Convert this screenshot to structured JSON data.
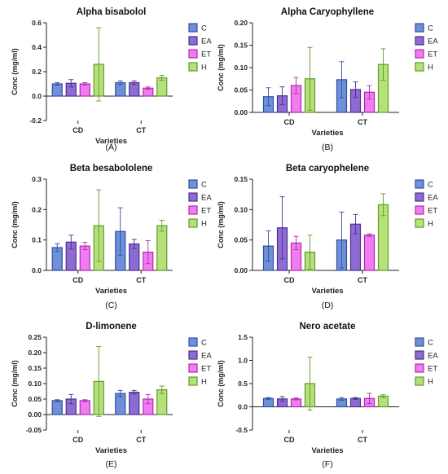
{
  "colors": {
    "C": {
      "fill": "#6f8fd8",
      "stroke": "#2f4fa0"
    },
    "EA": {
      "fill": "#8e6bd3",
      "stroke": "#4a2f8f"
    },
    "ET": {
      "fill": "#f07cf0",
      "stroke": "#b02ab0"
    },
    "H": {
      "fill": "#b6e07a",
      "stroke": "#5f9a2a"
    }
  },
  "chart_data": [
    {
      "type": "bar",
      "title": "Alpha bisabolol",
      "panel_label": "(A)",
      "xlabel": "Varieties",
      "ylabel": "Conc (mg/ml)",
      "categories": [
        "CD",
        "CT"
      ],
      "legend": [
        "C",
        "EA",
        "ET",
        "H"
      ],
      "ylim": [
        -0.2,
        0.6
      ],
      "yticks": [
        -0.2,
        0.0,
        0.2,
        0.4,
        0.6
      ],
      "ytick_labels": [
        "-0.2",
        "0.0",
        "0.2",
        "0.4",
        "0.6"
      ],
      "series": [
        {
          "name": "C",
          "values": [
            0.1,
            0.11
          ],
          "errors": [
            0.01,
            0.015
          ]
        },
        {
          "name": "EA",
          "values": [
            0.105,
            0.11
          ],
          "errors": [
            0.03,
            0.015
          ]
        },
        {
          "name": "ET",
          "values": [
            0.1,
            0.065
          ],
          "errors": [
            0.01,
            0.01
          ]
        },
        {
          "name": "H",
          "values": [
            0.26,
            0.15
          ],
          "errors": [
            0.3,
            0.02
          ]
        }
      ]
    },
    {
      "type": "bar",
      "title": "Alpha Caryophyllene",
      "panel_label": "(B)",
      "xlabel": "Varieties",
      "ylabel": "Conc (mg/ml)",
      "categories": [
        "CD",
        "CT"
      ],
      "legend": [
        "C",
        "EA",
        "ET",
        "H"
      ],
      "ylim": [
        0,
        0.2
      ],
      "yticks": [
        0,
        0.05,
        0.1,
        0.15,
        0.2
      ],
      "ytick_labels": [
        "0.00",
        "0.05",
        "0.10",
        "0.15",
        "0.20"
      ],
      "series": [
        {
          "name": "C",
          "values": [
            0.035,
            0.073
          ],
          "errors": [
            0.02,
            0.04
          ]
        },
        {
          "name": "EA",
          "values": [
            0.037,
            0.051
          ],
          "errors": [
            0.02,
            0.017
          ]
        },
        {
          "name": "ET",
          "values": [
            0.06,
            0.045
          ],
          "errors": [
            0.018,
            0.015
          ]
        },
        {
          "name": "H",
          "values": [
            0.075,
            0.107
          ],
          "errors": [
            0.07,
            0.035
          ]
        }
      ]
    },
    {
      "type": "bar",
      "title": "Beta besabololene",
      "panel_label": "(C)",
      "xlabel": "Varieties",
      "ylabel": "Conc (mg/ml)",
      "categories": [
        "CD",
        "CT"
      ],
      "legend": [
        "C",
        "EA",
        "ET",
        "H"
      ],
      "ylim": [
        0,
        0.3
      ],
      "yticks": [
        0,
        0.1,
        0.2,
        0.3
      ],
      "ytick_labels": [
        "0.0",
        "0.1",
        "0.2",
        "0.3"
      ],
      "series": [
        {
          "name": "C",
          "values": [
            0.075,
            0.128
          ],
          "errors": [
            0.013,
            0.078
          ]
        },
        {
          "name": "EA",
          "values": [
            0.093,
            0.087
          ],
          "errors": [
            0.023,
            0.015
          ]
        },
        {
          "name": "ET",
          "values": [
            0.08,
            0.06
          ],
          "errors": [
            0.012,
            0.038
          ]
        },
        {
          "name": "H",
          "values": [
            0.147,
            0.147
          ],
          "errors": [
            0.118,
            0.018
          ]
        }
      ]
    },
    {
      "type": "bar",
      "title": "Beta caryophelene",
      "panel_label": "(D)",
      "xlabel": "Varieties",
      "ylabel": "Conc (mg/ml)",
      "categories": [
        "CD",
        "CT"
      ],
      "legend": [
        "C",
        "EA",
        "ET",
        "H"
      ],
      "ylim": [
        0,
        0.15
      ],
      "yticks": [
        0,
        0.05,
        0.1,
        0.15
      ],
      "ytick_labels": [
        "0.00",
        "0.05",
        "0.10",
        "0.15"
      ],
      "series": [
        {
          "name": "C",
          "values": [
            0.04,
            0.05
          ],
          "errors": [
            0.025,
            0.046
          ]
        },
        {
          "name": "EA",
          "values": [
            0.07,
            0.076
          ],
          "errors": [
            0.051,
            0.016
          ]
        },
        {
          "name": "ET",
          "values": [
            0.045,
            0.058
          ],
          "errors": [
            0.011,
            0.002
          ]
        },
        {
          "name": "H",
          "values": [
            0.03,
            0.108
          ],
          "errors": [
            0.028,
            0.018
          ]
        }
      ]
    },
    {
      "type": "bar",
      "title": "D-limonene",
      "panel_label": "(E)",
      "xlabel": "Varieties",
      "ylabel": "Conc (mg/ml)",
      "categories": [
        "CD",
        "CT"
      ],
      "legend": [
        "C",
        "EA",
        "ET",
        "H"
      ],
      "ylim": [
        -0.05,
        0.25
      ],
      "yticks": [
        -0.05,
        0.0,
        0.05,
        0.1,
        0.15,
        0.2,
        0.25
      ],
      "ytick_labels": [
        "-0.05",
        "0.00",
        "0.05",
        "0.10",
        "0.15",
        "0.20",
        "0.25"
      ],
      "series": [
        {
          "name": "C",
          "values": [
            0.045,
            0.068
          ],
          "errors": [
            0.003,
            0.01
          ]
        },
        {
          "name": "EA",
          "values": [
            0.05,
            0.072
          ],
          "errors": [
            0.015,
            0.006
          ]
        },
        {
          "name": "ET",
          "values": [
            0.045,
            0.05
          ],
          "errors": [
            0.003,
            0.015
          ]
        },
        {
          "name": "H",
          "values": [
            0.107,
            0.08
          ],
          "errors": [
            0.113,
            0.012
          ]
        }
      ]
    },
    {
      "type": "bar",
      "title": "Nero acetate",
      "panel_label": "(F)",
      "xlabel": "Varieties",
      "ylabel": "Conc (mg/ml)",
      "categories": [
        "CD",
        "CT"
      ],
      "legend": [
        "C",
        "EA",
        "ET",
        "H"
      ],
      "ylim": [
        -0.5,
        1.5
      ],
      "yticks": [
        -0.5,
        0.0,
        0.5,
        1.0,
        1.5
      ],
      "ytick_labels": [
        "-0.5",
        "0.0",
        "0.5",
        "1.0",
        "1.5"
      ],
      "series": [
        {
          "name": "C",
          "values": [
            0.18,
            0.17
          ],
          "errors": [
            0.02,
            0.03
          ]
        },
        {
          "name": "EA",
          "values": [
            0.17,
            0.18
          ],
          "errors": [
            0.05,
            0.02
          ]
        },
        {
          "name": "ET",
          "values": [
            0.17,
            0.18
          ],
          "errors": [
            0.02,
            0.11
          ]
        },
        {
          "name": "H",
          "values": [
            0.5,
            0.23
          ],
          "errors": [
            0.57,
            0.03
          ]
        }
      ]
    }
  ]
}
